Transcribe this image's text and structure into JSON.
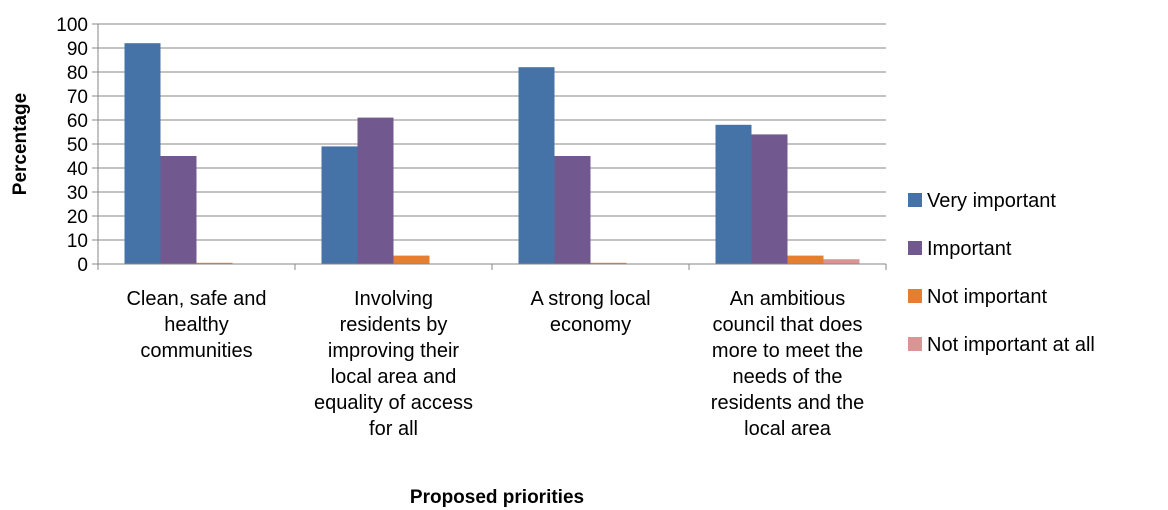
{
  "chart_data": {
    "type": "bar",
    "xlabel": "Proposed priorities",
    "ylabel": "Percentage",
    "ylim": [
      0,
      100
    ],
    "yticks": [
      0,
      10,
      20,
      30,
      40,
      50,
      60,
      70,
      80,
      90,
      100
    ],
    "grid": true,
    "legend_position": "right",
    "categories": [
      [
        "Clean, safe and",
        "healthy",
        "communities"
      ],
      [
        "Involving",
        "residents by",
        "improving their",
        "local area and",
        "equality of access",
        "for all"
      ],
      [
        "A strong local",
        "economy"
      ],
      [
        "An ambitious",
        "council that does",
        "more to meet the",
        "needs of the",
        "residents and the",
        "local area"
      ]
    ],
    "series": [
      {
        "name": "Very important",
        "color": "#4572A7",
        "values": [
          92,
          49,
          82,
          58
        ]
      },
      {
        "name": "Important",
        "color": "#71588F",
        "values": [
          45,
          61,
          45,
          54
        ]
      },
      {
        "name": "Not important",
        "color": "#E57F2F",
        "values": [
          0.5,
          3.5,
          0.5,
          3.5
        ]
      },
      {
        "name": "Not important at all",
        "color": "#D99594",
        "values": [
          0,
          0,
          0,
          2
        ]
      }
    ]
  }
}
